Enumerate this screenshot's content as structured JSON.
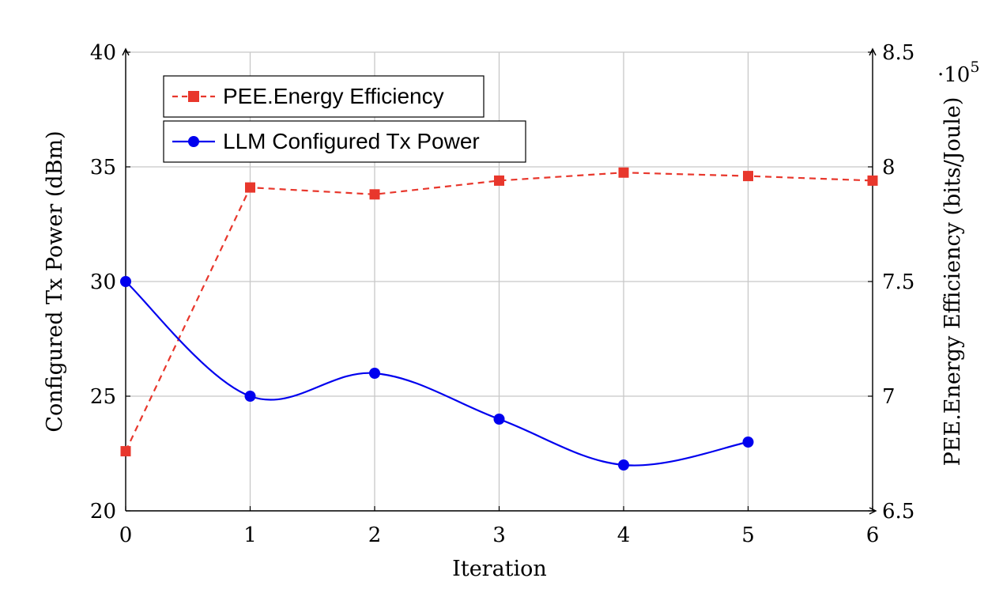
{
  "chart_data": {
    "type": "line",
    "xlabel": "Iteration",
    "ylabel_left": "Configured Tx Power (dBm)",
    "ylabel_right": "PEE.Energy Efficiency (bits/Joule)",
    "right_axis_multiplier": "·10",
    "right_axis_exponent": "5",
    "xlim": [
      0,
      6
    ],
    "ylim_left": [
      20,
      40
    ],
    "ylim_right": [
      650000,
      850000
    ],
    "x_ticks": [
      0,
      1,
      2,
      3,
      4,
      5,
      6
    ],
    "x_tick_labels": [
      "0",
      "1",
      "2",
      "3",
      "4",
      "5",
      "6"
    ],
    "y_ticks_left": [
      20,
      25,
      30,
      35,
      40
    ],
    "y_tick_labels_left": [
      "20",
      "25",
      "30",
      "35",
      "40"
    ],
    "y_ticks_right": [
      650000,
      700000,
      750000,
      800000,
      850000
    ],
    "y_tick_labels_right": [
      "6.5",
      "7",
      "7.5",
      "8",
      "8.5"
    ],
    "grid": true,
    "legend_position": "top-left",
    "series": [
      {
        "name": "PEE.Energy Efficiency",
        "axis": "right",
        "color": "#e8372c",
        "line_style": "dashed",
        "marker": "square",
        "x": [
          0,
          1,
          2,
          3,
          4,
          5,
          6
        ],
        "y": [
          676000,
          791000,
          788000,
          794000,
          797500,
          796000,
          794000
        ]
      },
      {
        "name": "LLM Configured Tx Power",
        "axis": "left",
        "color": "#0000ee",
        "line_style": "solid-smooth",
        "marker": "circle",
        "x": [
          0,
          1,
          2,
          3,
          4,
          5
        ],
        "y": [
          30,
          25,
          26,
          24,
          22,
          23
        ]
      }
    ]
  }
}
